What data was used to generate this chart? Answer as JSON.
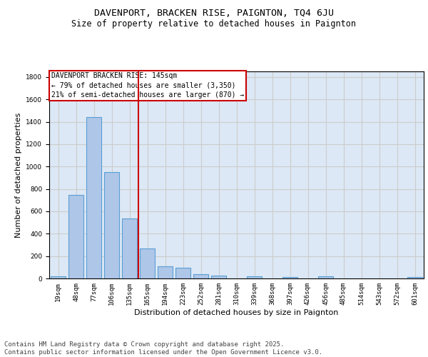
{
  "title1": "DAVENPORT, BRACKEN RISE, PAIGNTON, TQ4 6JU",
  "title2": "Size of property relative to detached houses in Paignton",
  "xlabel": "Distribution of detached houses by size in Paignton",
  "ylabel": "Number of detached properties",
  "categories": [
    "19sqm",
    "48sqm",
    "77sqm",
    "106sqm",
    "135sqm",
    "165sqm",
    "194sqm",
    "223sqm",
    "252sqm",
    "281sqm",
    "310sqm",
    "339sqm",
    "368sqm",
    "397sqm",
    "426sqm",
    "456sqm",
    "485sqm",
    "514sqm",
    "543sqm",
    "572sqm",
    "601sqm"
  ],
  "values": [
    20,
    745,
    1440,
    950,
    535,
    265,
    110,
    95,
    40,
    25,
    0,
    20,
    0,
    15,
    0,
    20,
    0,
    0,
    0,
    0,
    15
  ],
  "bar_color": "#aec6e8",
  "bar_edge_color": "#5a9fd4",
  "bar_linewidth": 0.8,
  "vline_color": "#cc0000",
  "annotation_title": "DAVENPORT BRACKEN RISE: 145sqm",
  "annotation_line1": "← 79% of detached houses are smaller (3,350)",
  "annotation_line2": "21% of semi-detached houses are larger (870) →",
  "annotation_box_color": "#cc0000",
  "ylim": [
    0,
    1850
  ],
  "yticks": [
    0,
    200,
    400,
    600,
    800,
    1000,
    1200,
    1400,
    1600,
    1800
  ],
  "grid_color": "#cccccc",
  "background_color": "#dce8f5",
  "footer_line1": "Contains HM Land Registry data © Crown copyright and database right 2025.",
  "footer_line2": "Contains public sector information licensed under the Open Government Licence v3.0.",
  "footer_fontsize": 6.5,
  "title1_fontsize": 9.5,
  "title2_fontsize": 8.5,
  "xlabel_fontsize": 8,
  "ylabel_fontsize": 8,
  "tick_fontsize": 6.5,
  "annotation_fontsize": 7
}
